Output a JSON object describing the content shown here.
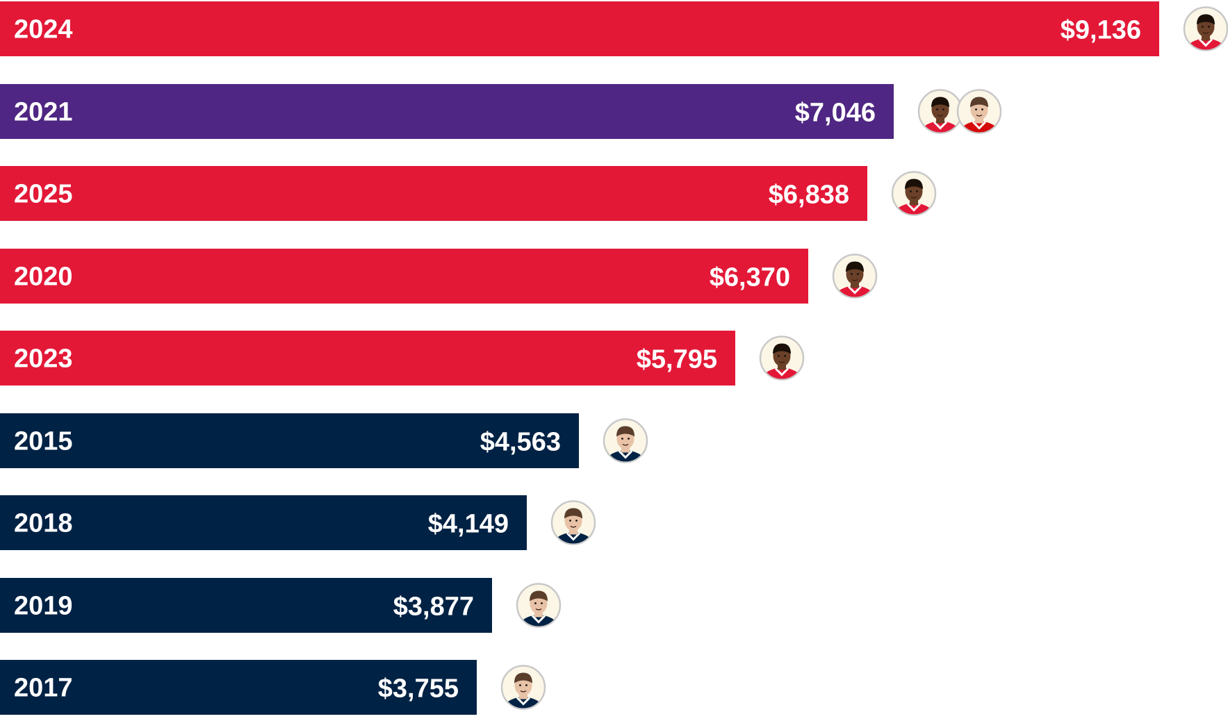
{
  "chart_data": {
    "type": "bar",
    "orientation": "horizontal",
    "title": "",
    "xlabel": "",
    "ylabel": "",
    "xlim": [
      0,
      9136
    ],
    "grid": false,
    "legend": "none",
    "categories": [
      "2024",
      "2021",
      "2025",
      "2020",
      "2023",
      "2015",
      "2018",
      "2019",
      "2017"
    ],
    "values": [
      9136,
      7046,
      6838,
      6370,
      5795,
      4563,
      4149,
      3877,
      3755
    ],
    "value_labels": [
      "$9,136",
      "$7,046",
      "$6,838",
      "$6,370",
      "$5,795",
      "$4,563",
      "$4,149",
      "$3,877",
      "$3,755"
    ],
    "bar_colors": [
      "#e31837",
      "#4f2683",
      "#e31837",
      "#e31837",
      "#e31837",
      "#002244",
      "#002244",
      "#002244",
      "#002244"
    ],
    "avatars": [
      [
        "chiefs-player"
      ],
      [
        "chiefs-player",
        "buccaneers-player"
      ],
      [
        "chiefs-player"
      ],
      [
        "chiefs-player"
      ],
      [
        "chiefs-player"
      ],
      [
        "patriots-player"
      ],
      [
        "patriots-player"
      ],
      [
        "patriots-player"
      ],
      [
        "patriots-player"
      ]
    ],
    "avatar_styles": {
      "chiefs-player": {
        "skin": "#6b4028",
        "hair": "#1a1008",
        "jersey": "#e31837",
        "trim": "#ffffff"
      },
      "buccaneers-player": {
        "skin": "#e8c2a6",
        "hair": "#5a3e2b",
        "jersey": "#d50a0a",
        "trim": "#ffffff"
      },
      "patriots-player": {
        "skin": "#e8c2a6",
        "hair": "#5a3e2b",
        "jersey": "#002244",
        "trim": "#ffffff"
      }
    },
    "avatar_bg": "#fbf6e6",
    "avatar_ring": "#c8c8c8",
    "label_color": "#ffffff"
  }
}
